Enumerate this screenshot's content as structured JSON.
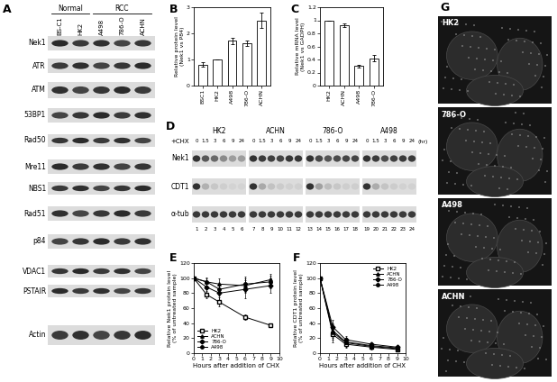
{
  "chart_data": [
    {
      "type": "bar",
      "label": "B",
      "categories": [
        "BSC1",
        "HK2",
        "A498",
        "786-O",
        "ACHN"
      ],
      "values": [
        0.8,
        1.0,
        1.72,
        1.62,
        2.5
      ],
      "errors": [
        0.08,
        0,
        0.12,
        0.1,
        0.3
      ],
      "color": "#ffffff",
      "ylabel": "Relative protein level\n(Nek1 vs P84)",
      "ylim": [
        0,
        3
      ],
      "yticks": [
        0,
        1,
        2,
        3
      ]
    },
    {
      "type": "bar",
      "label": "C",
      "categories": [
        "HK2",
        "ACHN",
        "A498",
        "786-O"
      ],
      "values": [
        1.0,
        0.92,
        0.3,
        0.42
      ],
      "errors": [
        0,
        0.03,
        0.02,
        0.05
      ],
      "color": "#ffffff",
      "ylabel": "Relative mRNA level\n(Nek1 vs GADPH)",
      "ylim": [
        0,
        1.2
      ],
      "yticks": [
        0,
        0.2,
        0.4,
        0.6,
        0.8,
        1,
        1.2
      ]
    },
    {
      "type": "line",
      "label": "E",
      "x": [
        0,
        1.5,
        3,
        6,
        9
      ],
      "series": [
        {
          "name": "HK2",
          "color": "#000000",
          "marker": "open_square",
          "values": [
            100,
            78,
            68,
            48,
            37
          ],
          "errors": [
            0,
            5,
            6,
            4,
            2
          ]
        },
        {
          "name": "ACHN",
          "color": "#000000",
          "marker": "triangle",
          "values": [
            100,
            95,
            92,
            90,
            98
          ],
          "errors": [
            0,
            6,
            8,
            10,
            8
          ]
        },
        {
          "name": "786-O",
          "color": "#000000",
          "marker": "diamond",
          "values": [
            100,
            88,
            80,
            85,
            90
          ],
          "errors": [
            0,
            7,
            10,
            12,
            10
          ]
        },
        {
          "name": "A498",
          "color": "#000000",
          "marker": "circle",
          "values": [
            100,
            95,
            85,
            92,
            95
          ],
          "errors": [
            0,
            5,
            8,
            10,
            8
          ]
        }
      ],
      "xlabel": "Hours after addition of CHX",
      "ylabel": "Relative Nek1 protein level\n(% of untreated sample)",
      "xlim": [
        0,
        10
      ],
      "xticks": [
        0,
        1,
        2,
        3,
        4,
        5,
        6,
        7,
        8,
        9,
        10
      ],
      "ylim": [
        0,
        120
      ],
      "yticks": [
        0,
        20,
        40,
        60,
        80,
        100,
        120
      ],
      "legend": "lower left"
    },
    {
      "type": "line",
      "label": "F",
      "x": [
        0,
        1.5,
        3,
        6,
        9
      ],
      "series": [
        {
          "name": "HK2",
          "color": "#000000",
          "marker": "open_square",
          "values": [
            100,
            25,
            12,
            8,
            5
          ],
          "errors": [
            0,
            10,
            5,
            3,
            2
          ]
        },
        {
          "name": "ACHN",
          "color": "#000000",
          "marker": "triangle",
          "values": [
            100,
            30,
            15,
            10,
            7
          ],
          "errors": [
            0,
            10,
            5,
            3,
            2
          ]
        },
        {
          "name": "786-O",
          "color": "#000000",
          "marker": "diamond",
          "values": [
            100,
            35,
            18,
            12,
            8
          ],
          "errors": [
            0,
            10,
            5,
            3,
            2
          ]
        },
        {
          "name": "A498",
          "color": "#000000",
          "marker": "circle",
          "values": [
            100,
            28,
            14,
            9,
            6
          ],
          "errors": [
            0,
            10,
            5,
            3,
            2
          ]
        }
      ],
      "xlabel": "Hours after addition of CHX",
      "ylabel": "Relative CDT1 protein level\n(% of untreated sample)",
      "xlim": [
        0,
        10
      ],
      "xticks": [
        0,
        1,
        2,
        3,
        4,
        5,
        6,
        7,
        8,
        9,
        10
      ],
      "ylim": [
        0,
        120
      ],
      "yticks": [
        0,
        20,
        40,
        60,
        80,
        100,
        120
      ],
      "legend": "upper right"
    }
  ],
  "blot_A": {
    "label": "A",
    "groups": [
      {
        "name": "Normal",
        "lanes": [
          "BS-C1",
          "HK2"
        ]
      },
      {
        "name": "RCC",
        "lanes": [
          "A498",
          "786-O",
          "ACHN"
        ]
      }
    ],
    "rows": [
      "Nek1",
      "ATR",
      "ATM",
      "53BP1",
      "Rad50",
      "Mre11",
      "NBS1",
      "Rad51",
      "p84",
      "VDAC1",
      "PSTAIR",
      "Actin"
    ]
  },
  "blot_D": {
    "label": "D",
    "treatment": "+CHX",
    "unit": "(hr)",
    "groups": [
      "HK2",
      "ACHN",
      "786-O",
      "A498"
    ],
    "times": [
      0,
      1.5,
      3,
      6,
      9,
      24
    ],
    "rows": [
      "Nek1",
      "CDT1",
      "α-tub"
    ],
    "lane_numbers": [
      1,
      2,
      3,
      4,
      5,
      6,
      7,
      8,
      9,
      10,
      11,
      12,
      13,
      14,
      15,
      16,
      17,
      18,
      19,
      20,
      21,
      22,
      23,
      24
    ]
  },
  "images_G": {
    "label": "G",
    "panels": [
      "HK2",
      "786-O",
      "A498",
      "ACHN"
    ]
  }
}
